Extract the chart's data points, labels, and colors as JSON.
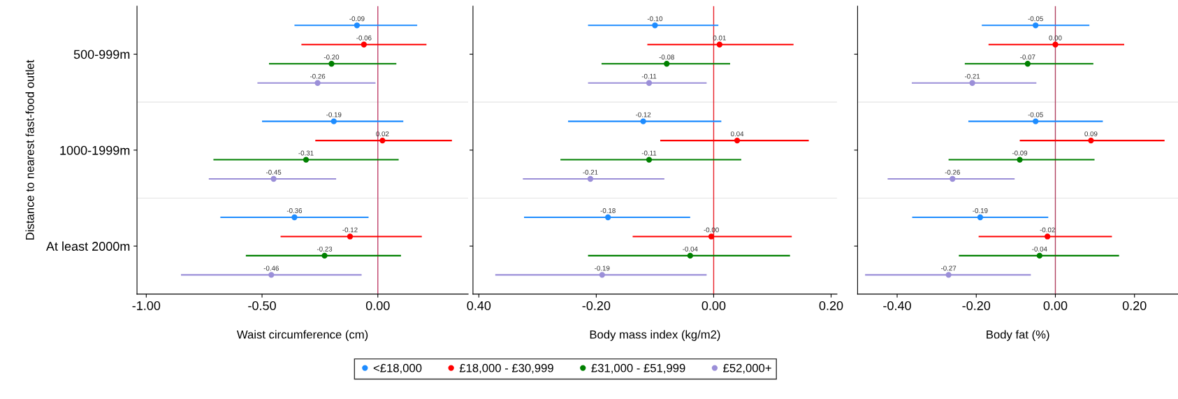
{
  "chart_data": [
    {
      "type": "scatter",
      "orientation": "horizontal",
      "categories": [
        "500-999m",
        "1000-1999m",
        "At least 2000m"
      ],
      "ylabel": "Distance to nearest fast-food outlet",
      "xlabel": "Waist circumference (cm)",
      "xlim": [
        -1.04,
        0.39
      ],
      "xticks": [
        {
          "value": -1,
          "label": "-1.00"
        },
        {
          "value": -0.5,
          "label": "-0.50"
        },
        {
          "value": 0,
          "label": "0.00"
        }
      ],
      "tick_labels": "xy",
      "marker": "circle",
      "legend": false,
      "ref_lines": [
        {
          "axis": "x",
          "value": 0,
          "color": "#c0406a"
        }
      ],
      "series": [
        {
          "color": "#1e8cff",
          "values": [
            -0.09,
            -0.19,
            -0.36
          ],
          "errors": [
            [
              -0.36,
              0.17
            ],
            [
              -0.5,
              0.11
            ],
            [
              -0.68,
              -0.04
            ]
          ],
          "value_labels": [
            "-0.09",
            "-0.19",
            "-0.36"
          ]
        },
        {
          "color": "#ff0000",
          "values": [
            -0.06,
            0.02,
            -0.12
          ],
          "errors": [
            [
              -0.33,
              0.21
            ],
            [
              -0.27,
              0.32
            ],
            [
              -0.42,
              0.19
            ]
          ],
          "value_labels": [
            "-0.06",
            "0.02",
            "-0.12"
          ]
        },
        {
          "color": "#008000",
          "values": [
            -0.2,
            -0.31,
            -0.23
          ],
          "errors": [
            [
              -0.47,
              0.08
            ],
            [
              -0.71,
              0.09
            ],
            [
              -0.57,
              0.1
            ]
          ],
          "value_labels": [
            "-0.20",
            "-0.31",
            "-0.23"
          ]
        },
        {
          "color": "#9b8fd8",
          "values": [
            -0.26,
            -0.45,
            -0.46
          ],
          "errors": [
            [
              -0.52,
              -0.01
            ],
            [
              -0.73,
              -0.18
            ],
            [
              -0.85,
              -0.07
            ]
          ],
          "value_labels": [
            "-0.26",
            "-0.45",
            "-0.46"
          ]
        }
      ]
    },
    {
      "type": "scatter",
      "orientation": "horizontal",
      "categories": [
        null,
        null,
        null
      ],
      "xlabel": "Body mass index (kg/m2)",
      "xlim": [
        -0.41,
        0.21
      ],
      "xticks": [
        {
          "value": -0.4,
          "label": "0.40"
        },
        {
          "value": -0.2,
          "label": "-0.20"
        },
        {
          "value": 0,
          "label": "0.00"
        },
        {
          "value": 0.2,
          "label": "0.20"
        }
      ],
      "tick_labels": "x",
      "marker": "circle",
      "legend": "bottom",
      "ref_lines": [
        {
          "axis": "x",
          "value": 0,
          "color": "#e8202a"
        }
      ],
      "series": [
        {
          "name": "<£18,000",
          "color": "#1e8cff",
          "values": [
            -0.1,
            -0.12,
            -0.18
          ],
          "errors": [
            [
              -0.214,
              0.008
            ],
            [
              -0.248,
              0.013
            ],
            [
              -0.323,
              -0.04
            ]
          ],
          "value_labels": [
            "-0.10",
            "-0.12",
            "-0.18"
          ]
        },
        {
          "name": "£18,000 - £30,999",
          "color": "#ff0000",
          "values": [
            0.01,
            0.04,
            -0.004
          ],
          "errors": [
            [
              -0.113,
              0.136
            ],
            [
              -0.091,
              0.162
            ],
            [
              -0.138,
              0.133
            ]
          ],
          "value_labels": [
            "0.01",
            "0.04",
            "-0.00"
          ]
        },
        {
          "name": "£31,000 - £51,999",
          "color": "#008000",
          "values": [
            -0.08,
            -0.11,
            -0.04
          ],
          "errors": [
            [
              -0.191,
              0.028
            ],
            [
              -0.261,
              0.047
            ],
            [
              -0.214,
              0.13
            ]
          ],
          "value_labels": [
            "-0.08",
            "-0.11",
            "-0.04"
          ]
        },
        {
          "name": "£52,000+",
          "color": "#9b8fd8",
          "values": [
            -0.11,
            -0.21,
            -0.19
          ],
          "errors": [
            [
              -0.214,
              -0.012
            ],
            [
              -0.325,
              -0.084
            ],
            [
              -0.372,
              -0.012
            ]
          ],
          "value_labels": [
            "-0.11",
            "-0.21",
            "-0.19"
          ]
        }
      ]
    },
    {
      "type": "scatter",
      "orientation": "horizontal",
      "categories": [
        null,
        null,
        null
      ],
      "xlabel": "Body fat (%)",
      "xlim": [
        -0.5,
        0.31
      ],
      "xticks": [
        {
          "value": -0.4,
          "label": "-0.40"
        },
        {
          "value": -0.2,
          "label": "-0.20"
        },
        {
          "value": 0,
          "label": "0.00"
        },
        {
          "value": 0.2,
          "label": "0.20"
        }
      ],
      "tick_labels": "x",
      "marker": "circle",
      "legend": false,
      "ref_lines": [
        {
          "axis": "x",
          "value": 0,
          "color": "#b04060"
        }
      ],
      "series": [
        {
          "color": "#1e8cff",
          "values": [
            -0.05,
            -0.05,
            -0.19
          ],
          "errors": [
            [
              -0.186,
              0.086
            ],
            [
              -0.22,
              0.12
            ],
            [
              -0.362,
              -0.018
            ]
          ],
          "value_labels": [
            "-0.05",
            "-0.05",
            "-0.19"
          ]
        },
        {
          "color": "#ff0000",
          "values": [
            0.0,
            0.09,
            -0.02
          ],
          "errors": [
            [
              -0.169,
              0.174
            ],
            [
              -0.09,
              0.276
            ],
            [
              -0.194,
              0.143
            ]
          ],
          "value_labels": [
            "0.00",
            "0.09",
            "-0.02"
          ]
        },
        {
          "color": "#008000",
          "values": [
            -0.07,
            -0.09,
            -0.04
          ],
          "errors": [
            [
              -0.229,
              0.096
            ],
            [
              -0.27,
              0.099
            ],
            [
              -0.244,
              0.161
            ]
          ],
          "value_labels": [
            "-0.07",
            "-0.09",
            "-0.04"
          ]
        },
        {
          "color": "#9b8fd8",
          "values": [
            -0.21,
            -0.26,
            -0.27
          ],
          "errors": [
            [
              -0.363,
              -0.048
            ],
            [
              -0.424,
              -0.103
            ],
            [
              -0.481,
              -0.062
            ]
          ],
          "value_labels": [
            "-0.21",
            "-0.26",
            "-0.27"
          ]
        }
      ]
    }
  ]
}
